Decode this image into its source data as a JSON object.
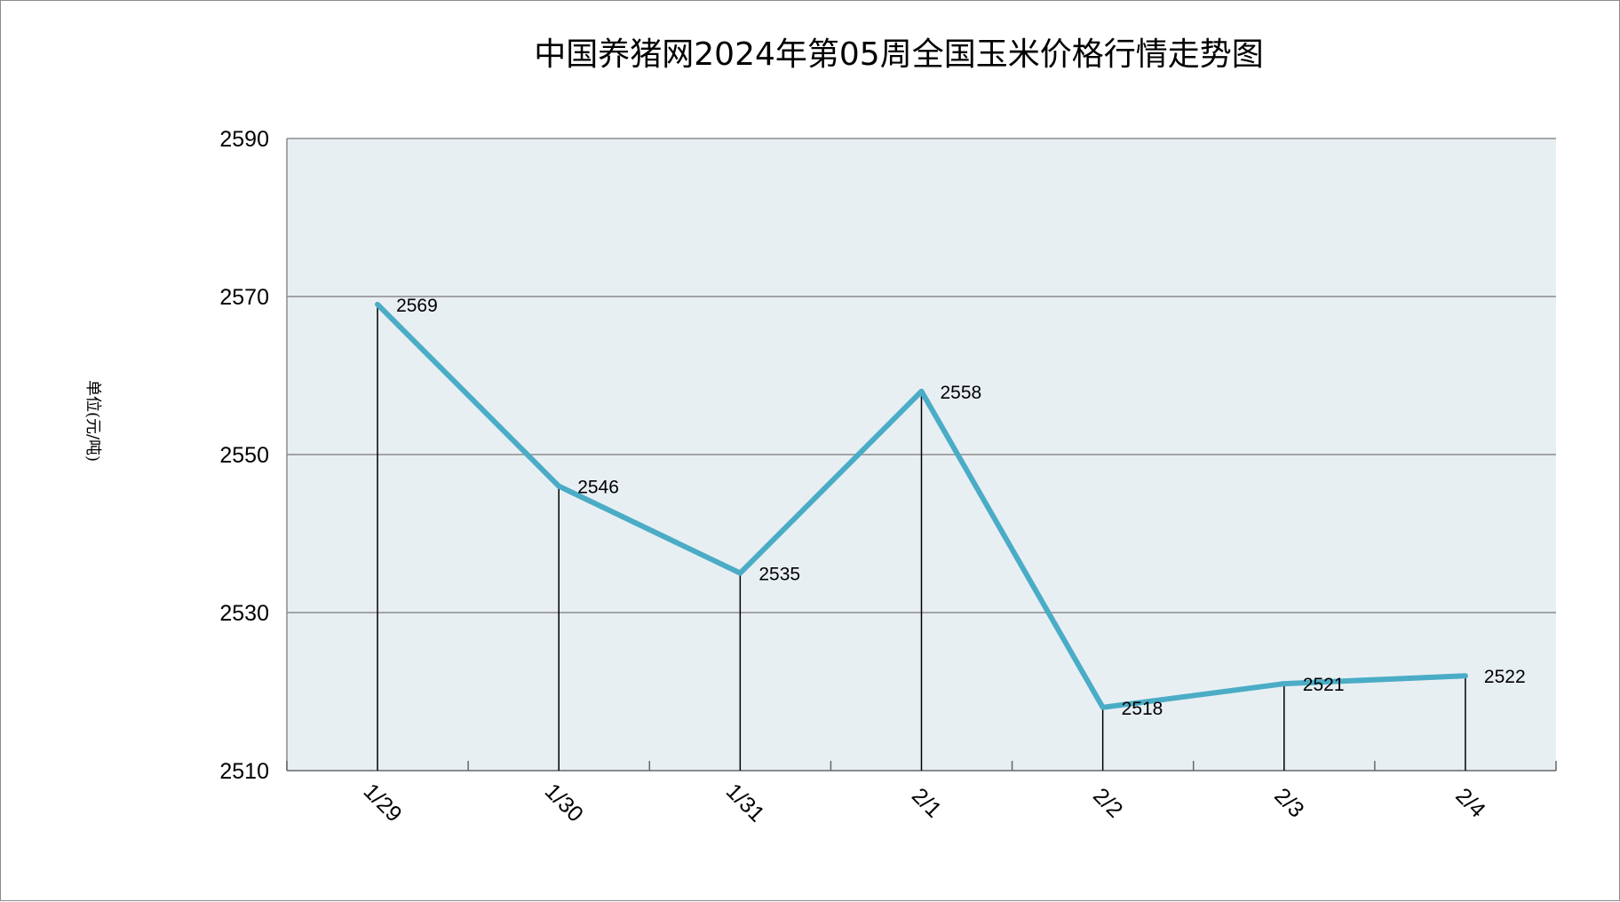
{
  "chart_data": {
    "type": "line",
    "title": "中国养猪网2024年第05周全国玉米价格行情走势图",
    "ylabel": "单位(元/吨)",
    "xlabel": "",
    "categories": [
      "1/29",
      "1/30",
      "1/31",
      "2/1",
      "2/2",
      "2/3",
      "2/4"
    ],
    "series": [
      {
        "values": [
          2569,
          2546,
          2535,
          2558,
          2518,
          2521,
          2522
        ]
      }
    ],
    "data_labels": [
      "2569",
      "2546",
      "2535",
      "2558",
      "2518",
      "2521",
      "2522"
    ],
    "ylim": [
      2510,
      2590
    ],
    "yticks": [
      "2510",
      "2530",
      "2550",
      "2570",
      "2590"
    ],
    "grid": true,
    "drop_lines": true,
    "legend": "none",
    "colors": {
      "line": "#4BACC6",
      "plot_background": "#E8EFF3",
      "gridline": "#8C8C8C",
      "drop_line": "#000000"
    }
  }
}
